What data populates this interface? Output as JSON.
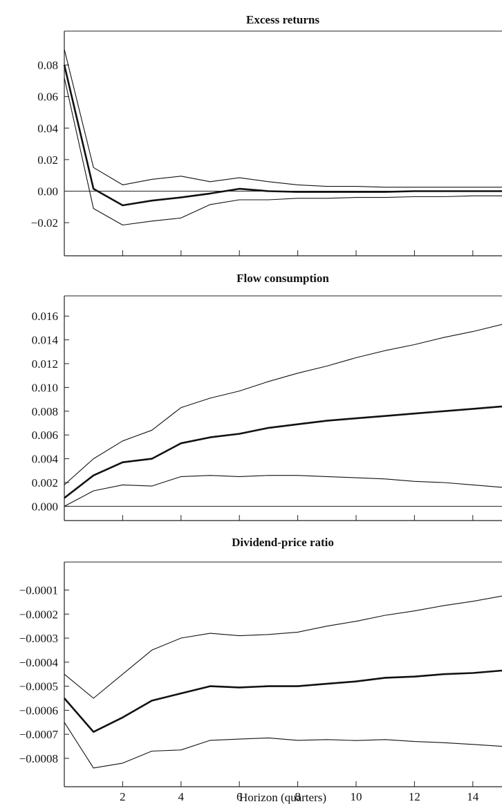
{
  "chart_data": [
    {
      "type": "line",
      "title": "Excess returns",
      "xlabel": "",
      "ylabel": "",
      "x": [
        0,
        1,
        2,
        3,
        4,
        5,
        6,
        7,
        8,
        9,
        10,
        11,
        12,
        13,
        14,
        15
      ],
      "xlim": [
        0,
        15
      ],
      "ylim": [
        -0.041,
        0.1015
      ],
      "yticks": [
        -0.02,
        0.0,
        0.02,
        0.04,
        0.06,
        0.08
      ],
      "ytick_labels": [
        "−0.02",
        "0.00",
        "0.02",
        "0.04",
        "0.06",
        "0.08"
      ],
      "xticks": [
        2,
        4,
        6,
        8,
        10,
        12,
        14
      ],
      "xtick_labels": [],
      "zero_line": true,
      "series": [
        {
          "role": "upper",
          "values": [
            0.09,
            0.015,
            0.004,
            0.0075,
            0.0095,
            0.006,
            0.0085,
            0.006,
            0.004,
            0.003,
            0.003,
            0.0025,
            0.0025,
            0.0025,
            0.0025,
            0.0025
          ]
        },
        {
          "role": "estimate",
          "values": [
            0.08,
            0.0015,
            -0.009,
            -0.006,
            -0.004,
            -0.0015,
            0.0015,
            0.0,
            -0.0005,
            -0.0005,
            -0.0005,
            -0.0005,
            0.0,
            0.0,
            0.0,
            0.0
          ]
        },
        {
          "role": "lower",
          "values": [
            0.072,
            -0.011,
            -0.0215,
            -0.019,
            -0.017,
            -0.0085,
            -0.0055,
            -0.0055,
            -0.0045,
            -0.0045,
            -0.004,
            -0.004,
            -0.0035,
            -0.0035,
            -0.003,
            -0.003
          ]
        }
      ]
    },
    {
      "type": "line",
      "title": "Flow consumption",
      "xlabel": "",
      "ylabel": "",
      "x": [
        0,
        1,
        2,
        3,
        4,
        5,
        6,
        7,
        8,
        9,
        10,
        11,
        12,
        13,
        14,
        15
      ],
      "xlim": [
        0,
        15
      ],
      "ylim": [
        -0.0012,
        0.0177
      ],
      "yticks": [
        0.0,
        0.002,
        0.004,
        0.006,
        0.008,
        0.01,
        0.012,
        0.014,
        0.016
      ],
      "ytick_labels": [
        "0.000",
        "0.002",
        "0.004",
        "0.006",
        "0.008",
        "0.010",
        "0.012",
        "0.014",
        "0.016"
      ],
      "xticks": [
        2,
        4,
        6,
        8,
        10,
        12,
        14
      ],
      "xtick_labels": [],
      "zero_line": true,
      "series": [
        {
          "role": "upper",
          "values": [
            0.0018,
            0.004,
            0.0055,
            0.0064,
            0.0083,
            0.0091,
            0.0097,
            0.0105,
            0.0112,
            0.0118,
            0.0125,
            0.0131,
            0.0136,
            0.0142,
            0.0147,
            0.0153
          ]
        },
        {
          "role": "estimate",
          "values": [
            0.0007,
            0.0026,
            0.0037,
            0.004,
            0.0053,
            0.0058,
            0.0061,
            0.0066,
            0.0069,
            0.0072,
            0.0074,
            0.0076,
            0.0078,
            0.008,
            0.0082,
            0.0084
          ]
        },
        {
          "role": "lower",
          "values": [
            0.0,
            0.0013,
            0.0018,
            0.0017,
            0.0025,
            0.0026,
            0.0025,
            0.0026,
            0.0026,
            0.0025,
            0.0024,
            0.0023,
            0.0021,
            0.002,
            0.0018,
            0.0016
          ]
        }
      ]
    },
    {
      "type": "line",
      "title": "Dividend-price ratio",
      "xlabel": "Horizon (quarters)",
      "ylabel": "",
      "x": [
        0,
        1,
        2,
        3,
        4,
        5,
        6,
        7,
        8,
        9,
        10,
        11,
        12,
        13,
        14,
        15
      ],
      "xlim": [
        0,
        15
      ],
      "ylim": [
        -0.000918,
        1.64e-05
      ],
      "yticks": [
        -0.0008,
        -0.0007,
        -0.0006,
        -0.0005,
        -0.0004,
        -0.0003,
        -0.0002,
        -0.0001
      ],
      "ytick_labels": [
        "−0.0008",
        "−0.0007",
        "−0.0006",
        "−0.0005",
        "−0.0004",
        "−0.0003",
        "−0.0002",
        "−0.0001"
      ],
      "xticks": [
        2,
        4,
        6,
        8,
        10,
        12,
        14
      ],
      "xtick_labels": [
        "2",
        "4",
        "6",
        "8",
        "10",
        "12",
        "14"
      ],
      "zero_line": false,
      "series": [
        {
          "role": "upper",
          "values": [
            -0.00045,
            -0.00055,
            -0.00045,
            -0.00035,
            -0.0003,
            -0.00028,
            -0.00029,
            -0.000285,
            -0.000275,
            -0.00025,
            -0.00023,
            -0.000205,
            -0.000187,
            -0.000165,
            -0.000147,
            -0.000125
          ]
        },
        {
          "role": "estimate",
          "values": [
            -0.00055,
            -0.00069,
            -0.00063,
            -0.00056,
            -0.00053,
            -0.0005,
            -0.000505,
            -0.0005,
            -0.0005,
            -0.00049,
            -0.00048,
            -0.000465,
            -0.00046,
            -0.00045,
            -0.000445,
            -0.000435
          ]
        },
        {
          "role": "lower",
          "values": [
            -0.00065,
            -0.00084,
            -0.00082,
            -0.00077,
            -0.000765,
            -0.000725,
            -0.00072,
            -0.000715,
            -0.000725,
            -0.000722,
            -0.000726,
            -0.000722,
            -0.00073,
            -0.000735,
            -0.000742,
            -0.00075
          ]
        }
      ]
    }
  ]
}
